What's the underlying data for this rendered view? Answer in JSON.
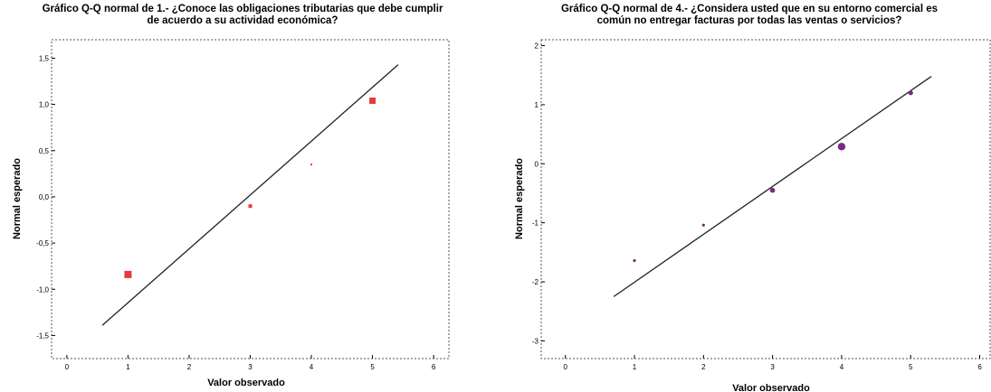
{
  "chart_data": [
    {
      "type": "scatter",
      "title": "Gráfico Q-Q normal de 1.- ¿Conoce las obligaciones tributarias que debe cumplir",
      "subtitle": "de acuerdo a su actividad económica?",
      "xlabel": "Valor observado",
      "ylabel": "Normal esperado",
      "xlim": [
        -0.25,
        6.25
      ],
      "ylim": [
        -1.75,
        1.7
      ],
      "xticks": [
        "0",
        "1",
        "2",
        "3",
        "4",
        "5",
        "6"
      ],
      "xtick_values": [
        0,
        1,
        2,
        3,
        4,
        5,
        6
      ],
      "yticks": [
        "-1,5",
        "-1,0",
        "-0,5",
        "0,0",
        "0,5",
        "1,0",
        "1,5"
      ],
      "ytick_values": [
        -1.5,
        -1.0,
        -0.5,
        0.0,
        0.5,
        1.0,
        1.5
      ],
      "point_color": "#e8393b",
      "line_color": "#222222",
      "points": [
        {
          "x": 1,
          "y": -0.84,
          "size": 4
        },
        {
          "x": 3,
          "y": -0.1,
          "size": 2
        },
        {
          "x": 4,
          "y": 0.35,
          "size": 1
        },
        {
          "x": 5,
          "y": 1.04,
          "size": 3.5
        }
      ],
      "reference_line": {
        "x": [
          0.58,
          5.42
        ],
        "y": [
          -1.39,
          1.43
        ]
      },
      "grid": false
    },
    {
      "type": "scatter",
      "title": "Gráfico Q-Q normal de 4.- ¿Considera usted que en su entorno comercial es",
      "subtitle": "común no entregar facturas por todas las ventas o servicios?",
      "xlabel": "Valor observado",
      "ylabel": "Normal esperado",
      "xlim": [
        -0.35,
        6.15
      ],
      "ylim": [
        -3.3,
        2.1
      ],
      "xticks": [
        "0",
        "1",
        "2",
        "3",
        "4",
        "5",
        "6"
      ],
      "xtick_values": [
        0,
        1,
        2,
        3,
        4,
        5,
        6
      ],
      "yticks": [
        "-3",
        "-2",
        "-1",
        "0",
        "1",
        "2"
      ],
      "ytick_values": [
        -3,
        -2,
        -1,
        0,
        1,
        2
      ],
      "point_color": "#7a2a82",
      "line_color": "#222222",
      "points": [
        {
          "x": 1,
          "y": -1.64,
          "size": 1.6
        },
        {
          "x": 2,
          "y": -1.04,
          "size": 1.6
        },
        {
          "x": 3,
          "y": -0.45,
          "size": 2.8
        },
        {
          "x": 4,
          "y": 0.29,
          "size": 4.2
        },
        {
          "x": 5,
          "y": 1.2,
          "size": 2.6
        }
      ],
      "reference_line": {
        "x": [
          0.7,
          5.3
        ],
        "y": [
          -2.25,
          1.48
        ]
      },
      "grid": false
    }
  ]
}
